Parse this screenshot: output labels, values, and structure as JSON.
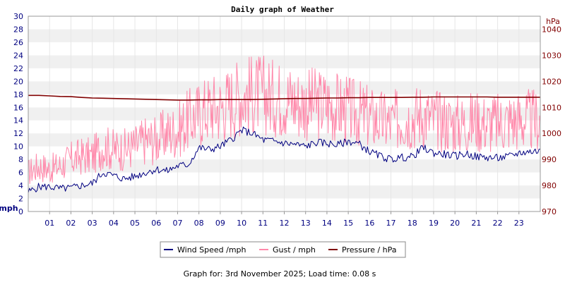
{
  "chart_data": {
    "type": "line",
    "title": "Daily graph of Weather",
    "left_axis": {
      "unit": "mph",
      "ylim": [
        0,
        30
      ],
      "ticks": [
        0,
        2,
        4,
        6,
        8,
        10,
        12,
        14,
        16,
        18,
        20,
        22,
        24,
        26,
        28,
        30
      ]
    },
    "right_axis": {
      "unit": "hPa",
      "ylim": [
        970,
        1045
      ],
      "ticks": [
        970,
        980,
        990,
        1000,
        1010,
        1020,
        1030,
        1040
      ]
    },
    "x_ticks": [
      "01",
      "02",
      "03",
      "04",
      "05",
      "06",
      "07",
      "08",
      "09",
      "10",
      "11",
      "12",
      "13",
      "14",
      "15",
      "16",
      "17",
      "18",
      "19",
      "20",
      "21",
      "22",
      "23"
    ],
    "xlim_hours": [
      0,
      24
    ],
    "grid": "horizontal bands",
    "legend_position": "bottom",
    "series": [
      {
        "name": "Wind Speed /mph",
        "axis": "left",
        "color": "#000080",
        "x": [
          0,
          0.5,
          1,
          1.5,
          2,
          2.5,
          3,
          3.5,
          4,
          4.5,
          5,
          5.5,
          6,
          6.5,
          7,
          7.5,
          8,
          8.5,
          9,
          9.5,
          10,
          10.5,
          11,
          11.5,
          12,
          12.5,
          13,
          13.5,
          14,
          14.5,
          15,
          15.5,
          16,
          16.5,
          17,
          17.5,
          18,
          18.5,
          19,
          19.5,
          20,
          20.5,
          21,
          21.5,
          22,
          22.5,
          23,
          23.5,
          24
        ],
        "values": [
          3,
          3.8,
          3.8,
          3.5,
          3.6,
          4,
          4.3,
          6,
          5.5,
          5,
          5.4,
          6,
          6.5,
          6.2,
          7,
          7.2,
          9.8,
          9.5,
          10,
          11,
          12.5,
          12,
          11,
          10.8,
          10.5,
          10.3,
          10,
          10.6,
          10.5,
          10.2,
          10.8,
          10.4,
          9.2,
          8.5,
          8,
          8.3,
          8.4,
          9.8,
          9,
          8.8,
          8.5,
          8.9,
          8.4,
          8.3,
          8.2,
          8.4,
          9,
          9.2,
          9.3
        ]
      },
      {
        "name": "Gust / mph",
        "axis": "left",
        "color": "#FF88AA",
        "x": [
          0,
          0.5,
          1,
          1.5,
          2,
          2.5,
          3,
          3.5,
          4,
          4.5,
          5,
          5.5,
          6,
          6.5,
          7,
          7.5,
          8,
          8.5,
          9,
          9.5,
          10,
          10.5,
          11,
          11.5,
          12,
          12.5,
          13,
          13.5,
          14,
          14.5,
          15,
          15.5,
          16,
          16.5,
          17,
          17.5,
          18,
          18.5,
          19,
          19.5,
          20,
          20.5,
          21,
          21.5,
          22,
          22.5,
          23,
          23.5,
          24
        ],
        "values": [
          6,
          7,
          6.5,
          7,
          8,
          8.5,
          8.5,
          10,
          9.5,
          9.5,
          10,
          11,
          11,
          12,
          12.5,
          14,
          15,
          16,
          16,
          17,
          18,
          18,
          18,
          17.5,
          17.5,
          17,
          16.5,
          16.5,
          16.5,
          16,
          15.5,
          15,
          14.5,
          14,
          13.5,
          14.5,
          14.5,
          15,
          14,
          14,
          13.5,
          13.5,
          14,
          13.5,
          13.5,
          14,
          14,
          14,
          14
        ]
      },
      {
        "name": "Pressure / hPa",
        "axis": "right",
        "color": "#800000",
        "x": [
          0,
          0.5,
          1,
          1.5,
          2,
          2.5,
          3,
          3.5,
          4,
          4.5,
          5,
          5.5,
          6,
          6.5,
          7,
          7.5,
          8,
          8.5,
          9,
          9.5,
          10,
          10.5,
          11,
          11.5,
          12,
          12.5,
          13,
          13.5,
          14,
          14.5,
          15,
          15.5,
          16,
          16.5,
          17,
          17.5,
          18,
          18.5,
          19,
          19.5,
          20,
          20.5,
          21,
          21.5,
          22,
          22.5,
          23,
          23.5,
          24
        ],
        "values": [
          1014.6,
          1014.6,
          1014.4,
          1014.2,
          1014.1,
          1013.8,
          1013.6,
          1013.5,
          1013.4,
          1013.3,
          1013.2,
          1013.1,
          1013.0,
          1012.9,
          1012.8,
          1012.8,
          1012.9,
          1012.9,
          1013.0,
          1013.0,
          1013.0,
          1013.0,
          1013.1,
          1013.2,
          1013.3,
          1013.4,
          1013.4,
          1013.5,
          1013.6,
          1013.6,
          1013.7,
          1013.7,
          1013.8,
          1013.8,
          1013.8,
          1013.8,
          1013.9,
          1013.9,
          1014.0,
          1014.0,
          1014.0,
          1014.0,
          1014.0,
          1014.0,
          1013.9,
          1013.9,
          1013.9,
          1013.9,
          1013.9
        ]
      }
    ],
    "footer": "Graph for: 3rd November 2025; Load time: 0.08 s"
  }
}
